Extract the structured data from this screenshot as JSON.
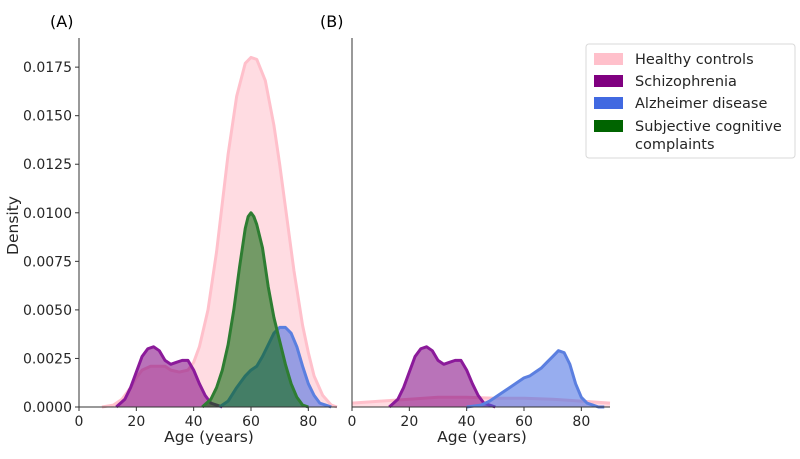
{
  "chart_data": [
    {
      "panel": "(A)",
      "type": "area",
      "xlabel": "Age (years)",
      "ylabel": "Density",
      "xlim": [
        0,
        90
      ],
      "ylim": [
        0,
        0.019
      ],
      "xticks": [
        "0",
        "20",
        "40",
        "60",
        "80"
      ],
      "yticks": [
        "0.0000",
        "0.0025",
        "0.0050",
        "0.0075",
        "0.0100",
        "0.0125",
        "0.0150",
        "0.0175"
      ],
      "series": [
        {
          "name": "Healthy controls",
          "color": "#ffc0cb",
          "stroke": "#ffc0cb",
          "x": [
            8,
            12,
            15,
            18,
            20,
            22,
            25,
            28,
            30,
            32,
            35,
            38,
            40,
            42,
            45,
            48,
            50,
            52,
            55,
            58,
            60,
            62,
            65,
            68,
            70,
            72,
            75,
            78,
            80,
            82,
            85,
            88,
            90
          ],
          "y": [
            0,
            0.0001,
            0.0004,
            0.001,
            0.0015,
            0.0019,
            0.0021,
            0.0021,
            0.0021,
            0.0019,
            0.0018,
            0.0019,
            0.0023,
            0.0031,
            0.005,
            0.008,
            0.0105,
            0.013,
            0.016,
            0.0177,
            0.018,
            0.0179,
            0.0168,
            0.0145,
            0.0125,
            0.0103,
            0.007,
            0.0042,
            0.0028,
            0.0016,
            0.0006,
            0.0001,
            0
          ]
        },
        {
          "name": "Schizophrenia",
          "color": "#800080",
          "stroke": "#8b1a9a",
          "x": [
            13,
            16,
            18,
            20,
            22,
            24,
            26,
            28,
            30,
            32,
            34,
            36,
            38,
            40,
            42,
            44,
            46,
            48,
            50
          ],
          "y": [
            0,
            0.0004,
            0.001,
            0.0018,
            0.0026,
            0.003,
            0.0031,
            0.0029,
            0.0024,
            0.0022,
            0.0023,
            0.0024,
            0.0024,
            0.0019,
            0.0012,
            0.0006,
            0.0002,
            0.0001,
            0
          ]
        },
        {
          "name": "Alzheimer disease",
          "color": "#4169e1",
          "stroke": "#5b7fe0",
          "x": [
            49,
            52,
            55,
            58,
            60,
            62,
            64,
            66,
            68,
            70,
            72,
            74,
            76,
            78,
            80,
            82,
            84,
            86,
            88
          ],
          "y": [
            0,
            0.0003,
            0.001,
            0.0016,
            0.0019,
            0.0021,
            0.0026,
            0.0032,
            0.0038,
            0.0041,
            0.0041,
            0.0038,
            0.0031,
            0.0021,
            0.0012,
            0.0006,
            0.0002,
            0.0001,
            0
          ]
        },
        {
          "name": "Subjective cognitive complaints",
          "color": "#006400",
          "stroke": "#2e7d32",
          "x": [
            43,
            46,
            48,
            50,
            52,
            54,
            56,
            58,
            59,
            60,
            61,
            62,
            64,
            66,
            68,
            70,
            72,
            74,
            76,
            78,
            80
          ],
          "y": [
            0,
            0.0004,
            0.001,
            0.0019,
            0.0032,
            0.005,
            0.0072,
            0.0092,
            0.0098,
            0.01,
            0.0098,
            0.0094,
            0.0082,
            0.0062,
            0.0046,
            0.0034,
            0.0022,
            0.0012,
            0.0005,
            0.0001,
            0
          ]
        }
      ]
    },
    {
      "panel": "(B)",
      "type": "area",
      "xlabel": "Age (years)",
      "xlim": [
        0,
        90
      ],
      "ylim": [
        0,
        0.019
      ],
      "xticks": [
        "0",
        "20",
        "40",
        "60",
        "80"
      ],
      "series": [
        {
          "name": "Healthy controls",
          "color": "#ffc0cb",
          "stroke": "#ffc0cb",
          "x": [
            0,
            10,
            20,
            30,
            40,
            50,
            60,
            70,
            80,
            90
          ],
          "y": [
            0.0002,
            0.0003,
            0.0004,
            0.0005,
            0.0005,
            0.00045,
            0.00045,
            0.0004,
            0.0003,
            0.0002
          ]
        },
        {
          "name": "Schizophrenia",
          "color": "#800080",
          "stroke": "#8b1a9a",
          "x": [
            13,
            16,
            18,
            20,
            22,
            24,
            26,
            28,
            30,
            32,
            34,
            36,
            38,
            40,
            42,
            44,
            46,
            48,
            50
          ],
          "y": [
            0,
            0.0004,
            0.001,
            0.0018,
            0.0026,
            0.003,
            0.0031,
            0.0029,
            0.0024,
            0.0022,
            0.0023,
            0.0024,
            0.0024,
            0.0019,
            0.0012,
            0.0006,
            0.0002,
            0.0001,
            0
          ]
        },
        {
          "name": "Alzheimer disease",
          "color": "#4169e1",
          "stroke": "#5b7fe0",
          "x": [
            40,
            45,
            48,
            50,
            52,
            55,
            58,
            60,
            62,
            64,
            66,
            68,
            70,
            72,
            74,
            76,
            78,
            80,
            82,
            84,
            86,
            88
          ],
          "y": [
            0,
            0.0001,
            0.0003,
            0.0005,
            0.0007,
            0.001,
            0.0013,
            0.0015,
            0.0016,
            0.0018,
            0.002,
            0.0023,
            0.0026,
            0.0029,
            0.0028,
            0.0022,
            0.0012,
            0.0005,
            0.0002,
            0.0001,
            0,
            0
          ]
        }
      ]
    }
  ],
  "legend": {
    "position": "top-right",
    "items": [
      {
        "lines": [
          "Healthy controls"
        ],
        "color": "#ffc0cb"
      },
      {
        "lines": [
          "Schizophrenia"
        ],
        "color": "#800080"
      },
      {
        "lines": [
          "Alzheimer disease"
        ],
        "color": "#4169e1"
      },
      {
        "lines": [
          "Subjective cognitive",
          "complaints"
        ],
        "color": "#006400"
      }
    ]
  }
}
